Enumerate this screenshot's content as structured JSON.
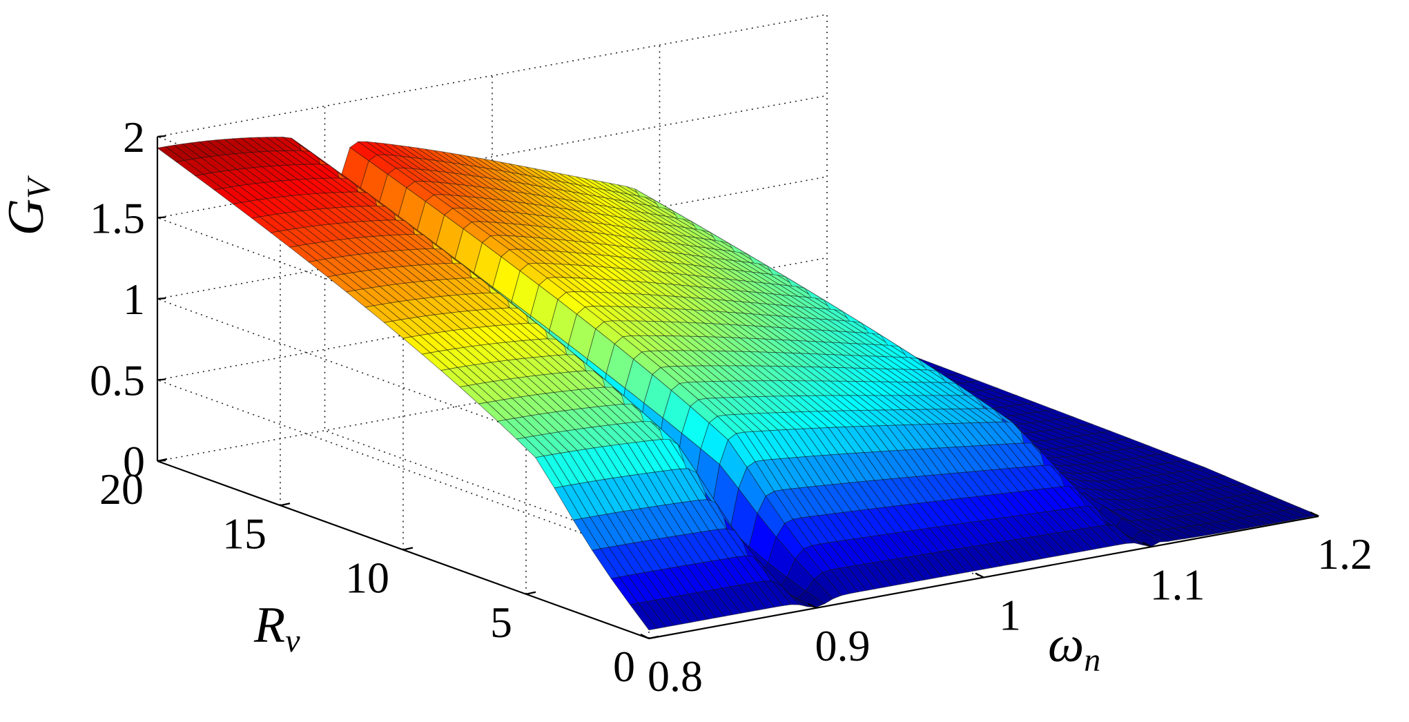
{
  "chart_data": {
    "type": "surface",
    "title": "",
    "xlabel": "ω",
    "xlabel_sub": "n",
    "ylabel": "R",
    "ylabel_sub": "v",
    "zlabel": "G",
    "zlabel_sub": "V",
    "xlim": [
      0.8,
      1.2
    ],
    "ylim": [
      0,
      20
    ],
    "zlim": [
      0,
      2
    ],
    "xticks": [
      "0.8",
      "0.9",
      "1",
      "1.1",
      "1.2"
    ],
    "yticks": [
      "0",
      "5",
      "10",
      "15",
      "20"
    ],
    "zticks": [
      "0",
      "0.5",
      "1",
      "1.5",
      "2"
    ],
    "x_values": [
      0.8,
      0.9,
      1.0,
      1.1,
      1.2
    ],
    "y_values": [
      0,
      5,
      10,
      15,
      20
    ],
    "z_peak_estimate": {
      "x": 0.8,
      "y": 20,
      "z": 2.1
    },
    "surface_notches_at_x": [
      0.9,
      1.1
    ],
    "colormap": "jet",
    "grid": true
  }
}
